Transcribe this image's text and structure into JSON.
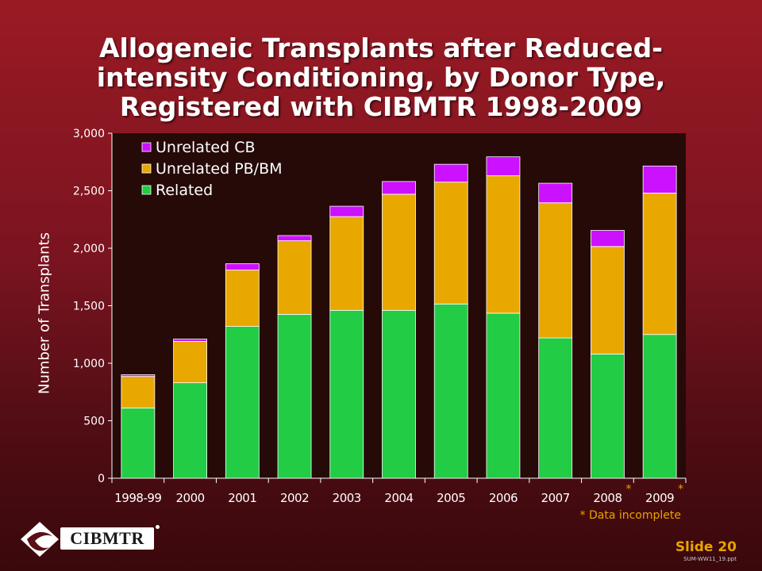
{
  "title": "Allogeneic Transplants after Reduced-intensity Conditioning, by Donor Type, Registered with CIBMTR 1998-2009",
  "chart_data": {
    "type": "bar",
    "stacked": true,
    "categories": [
      "1998-99",
      "2000",
      "2001",
      "2002",
      "2003",
      "2004",
      "2005",
      "2006",
      "2007",
      "2008",
      "2009"
    ],
    "series": [
      {
        "name": "Related",
        "color": "#22cc44",
        "values": [
          610,
          830,
          1320,
          1425,
          1460,
          1460,
          1515,
          1435,
          1220,
          1080,
          1250
        ]
      },
      {
        "name": "Unrelated PB/BM",
        "color": "#e8a800",
        "values": [
          275,
          360,
          490,
          640,
          815,
          1010,
          1060,
          1195,
          1175,
          935,
          1230
        ]
      },
      {
        "name": "Unrelated CB",
        "color": "#cc11ff",
        "values": [
          15,
          20,
          55,
          45,
          90,
          110,
          155,
          165,
          170,
          140,
          235
        ]
      }
    ],
    "legend_order": [
      "Unrelated CB",
      "Unrelated PB/BM",
      "Related"
    ],
    "legend_position": "top-left",
    "ylabel": "Number of Transplants",
    "xlabel": "",
    "ylim": [
      0,
      3000
    ],
    "yticks": [
      "0",
      "500",
      "1,000",
      "1,500",
      "2,000",
      "2,500",
      "3,000"
    ],
    "ytick_values": [
      0,
      500,
      1000,
      1500,
      2000,
      2500,
      3000
    ],
    "incomplete_marker": "*",
    "incomplete_categories": [
      "2008",
      "2009"
    ],
    "grid": false,
    "plot_background": "#250a08"
  },
  "note": "* Data incomplete",
  "slide": "Slide 20",
  "file_ref": "SUM-WW11_19.ppt",
  "logo_text": "CIBMTR"
}
